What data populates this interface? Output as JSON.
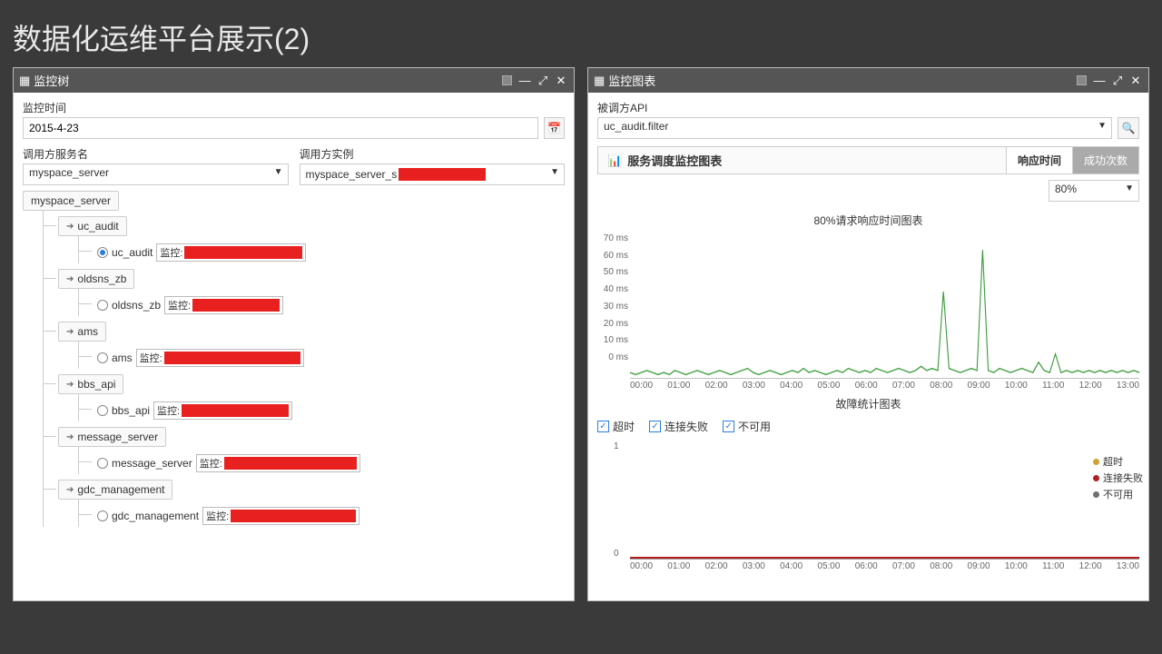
{
  "page_title": "数据化运维平台展示(2)",
  "panel_left": {
    "title": "监控树",
    "date_label": "监控时间",
    "date_value": "2015-4-23",
    "service_label": "调用方服务名",
    "service_value": "myspace_server",
    "instance_label": "调用方实例",
    "instance_value": "myspace_server_s",
    "tree": {
      "root": "myspace_server",
      "badge_prefix": "监控:",
      "nodes": [
        {
          "name": "uc_audit",
          "leaf": "uc_audit",
          "selected": true,
          "redact_w": 130
        },
        {
          "name": "oldsns_zb",
          "leaf": "oldsns_zb",
          "selected": false,
          "redact_w": 96
        },
        {
          "name": "ams",
          "leaf": "ams",
          "selected": false,
          "redact_w": 150
        },
        {
          "name": "bbs_api",
          "leaf": "bbs_api",
          "selected": false,
          "redact_w": 118
        },
        {
          "name": "message_server",
          "leaf": "message_server",
          "selected": false,
          "redact_w": 146
        },
        {
          "name": "gdc_management",
          "leaf": "gdc_management",
          "selected": false,
          "redact_w": 138
        }
      ]
    }
  },
  "panel_right": {
    "title": "监控图表",
    "api_label": "被调方API",
    "api_value": "uc_audit.filter",
    "section_title": "服务调度监控图表",
    "tabs": {
      "active": "响应时间",
      "other": "成功次数"
    },
    "pct_value": "80%",
    "chart1": {
      "title": "80%请求响应时间图表",
      "ymax": 70,
      "ystep": 10,
      "yunit": "ms",
      "xticks": [
        "00:00",
        "01:00",
        "02:00",
        "03:00",
        "04:00",
        "05:00",
        "06:00",
        "07:00",
        "08:00",
        "09:00",
        "10:00",
        "11:00",
        "12:00",
        "13:00"
      ],
      "line_color": "#3b9c3b",
      "series": [
        3,
        2,
        3,
        4,
        3,
        2,
        3,
        2,
        4,
        3,
        2,
        3,
        4,
        3,
        2,
        3,
        4,
        3,
        2,
        3,
        4,
        5,
        3,
        2,
        3,
        4,
        3,
        2,
        3,
        4,
        3,
        5,
        3,
        4,
        3,
        2,
        3,
        4,
        3,
        5,
        4,
        3,
        4,
        3,
        5,
        4,
        3,
        4,
        5,
        4,
        3,
        4,
        6,
        4,
        5,
        4,
        42,
        5,
        4,
        3,
        4,
        5,
        4,
        62,
        4,
        3,
        5,
        4,
        3,
        4,
        5,
        4,
        3,
        8,
        4,
        3,
        12,
        3,
        4,
        3,
        4,
        3,
        4,
        3,
        4,
        3,
        4,
        3,
        4,
        3,
        4,
        3
      ]
    },
    "chart2": {
      "title": "故障统计图表",
      "checks": [
        "超时",
        "连接失败",
        "不可用"
      ],
      "ymax": 1,
      "ymin": 0,
      "xticks": [
        "00:00",
        "01:00",
        "02:00",
        "03:00",
        "04:00",
        "05:00",
        "06:00",
        "07:00",
        "08:00",
        "09:00",
        "10:00",
        "11:00",
        "12:00",
        "13:00"
      ],
      "legend": [
        {
          "label": "超时",
          "color": "#d0a030"
        },
        {
          "label": "连接失败",
          "color": "#b02020"
        },
        {
          "label": "不可用",
          "color": "#707070"
        }
      ]
    }
  },
  "colors": {
    "redact": "#e82020",
    "panel_hdr": "#555555",
    "bg": "#3a3a3a"
  }
}
